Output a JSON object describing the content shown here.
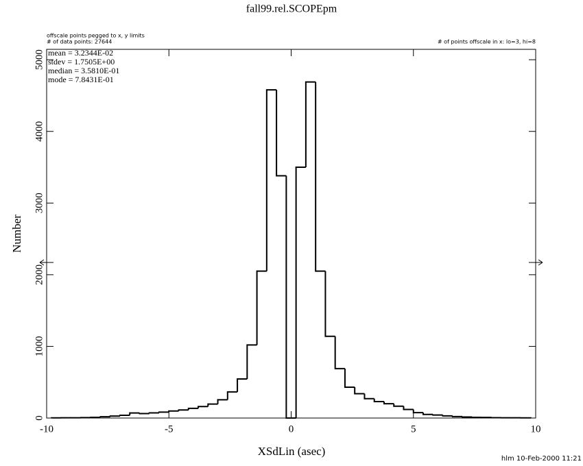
{
  "chart_data": {
    "type": "histogram",
    "title": "fall99.rel.SCOPEpm",
    "notes": [
      "offscale points pegged to x, y limits",
      "# of data points: 27644"
    ],
    "offscale_note": "# of points offscale in x: lo=3, hi=8",
    "stats": [
      "mean =  3.2344E-02",
      "stdev =  1.7505E+00",
      "median =  3.5810E-01",
      "mode =  7.8431E-01"
    ],
    "x_label": "XSdLin (asec)",
    "y_label": "Number",
    "footer": "hlm 10-Feb-2000 11:21",
    "color": "#000000",
    "bins": [
      -9.8,
      -9.4,
      -9.0,
      -8.6,
      -8.2,
      -7.8,
      -7.4,
      -7.0,
      -6.6,
      -6.2,
      -5.8,
      -5.4,
      -5.0,
      -4.6,
      -4.2,
      -3.8,
      -3.4,
      -3.0,
      -2.6,
      -2.2,
      -1.8,
      -1.4,
      -1.0,
      -0.6,
      -0.2,
      0.2,
      0.6,
      1.0,
      1.4,
      1.8,
      2.2,
      2.6,
      3.0,
      3.4,
      3.8,
      4.2,
      4.6,
      5.0,
      5.4,
      5.8,
      6.2,
      6.6,
      7.0,
      7.4,
      7.8,
      8.2,
      8.6,
      9.0,
      9.4,
      9.8
    ],
    "values": [
      2,
      3,
      4,
      6,
      10,
      18,
      28,
      38,
      70,
      62,
      72,
      82,
      98,
      112,
      135,
      160,
      195,
      255,
      365,
      545,
      1020,
      2050,
      4580,
      3380,
      0,
      3500,
      4690,
      2050,
      1140,
      690,
      430,
      340,
      270,
      230,
      200,
      165,
      120,
      75,
      50,
      42,
      30,
      20,
      14,
      10,
      8,
      5,
      4,
      3,
      2
    ],
    "xlim": [
      -10,
      10
    ],
    "ylim": [
      0,
      5145
    ],
    "xticks": [
      -10,
      -5,
      0,
      5,
      10
    ],
    "yticks": [
      0,
      1000,
      2000,
      3000,
      4000,
      5000
    ]
  }
}
